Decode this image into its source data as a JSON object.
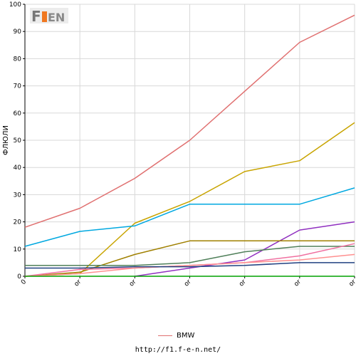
{
  "logo_text": "F1EN",
  "chart_data": {
    "type": "line",
    "ylabel": "ФЛЮЛИ",
    "ylim": [
      0,
      100
    ],
    "yticks": [
      0,
      10,
      20,
      30,
      40,
      50,
      60,
      70,
      80,
      90,
      100
    ],
    "categories": [
      "0",
      "or",
      "or",
      "or",
      "or",
      "or",
      "or"
    ],
    "grid": true,
    "legend_position": "bottom",
    "series": [
      {
        "name": "BMW",
        "color": "#e07070",
        "values": [
          18,
          25,
          36,
          50,
          68,
          86,
          96
        ]
      },
      {
        "color": "#c8a400",
        "values": [
          0,
          1,
          19.5,
          27.5,
          38.5,
          42.5,
          56.5
        ]
      },
      {
        "color": "#00a8e0",
        "values": [
          11,
          16.5,
          18.5,
          26.5,
          26.5,
          26.5,
          32.5
        ]
      },
      {
        "color": "#9030c0",
        "values": [
          null,
          null,
          0,
          3,
          6,
          17,
          20
        ]
      },
      {
        "color": "#a08000",
        "values": [
          0,
          1.5,
          8,
          13,
          13,
          13,
          13
        ]
      },
      {
        "color": "#50805a",
        "values": [
          4,
          4,
          4,
          5,
          9,
          11,
          11
        ]
      },
      {
        "color": "#f070a0",
        "values": [
          0,
          2.5,
          3,
          4,
          5,
          7.5,
          12
        ]
      },
      {
        "color": "#ff9090",
        "values": [
          0,
          1,
          3,
          4,
          5,
          6,
          8
        ]
      },
      {
        "color": "#204080",
        "values": [
          3,
          3,
          3.5,
          3.5,
          4,
          5,
          5
        ]
      },
      {
        "color": "#00a000",
        "values": [
          0,
          0,
          0,
          0,
          0,
          0,
          0
        ]
      }
    ]
  },
  "legend": {
    "label": "BMW",
    "color": "#e07070"
  },
  "source": "http://f1.f-e-n.net/"
}
